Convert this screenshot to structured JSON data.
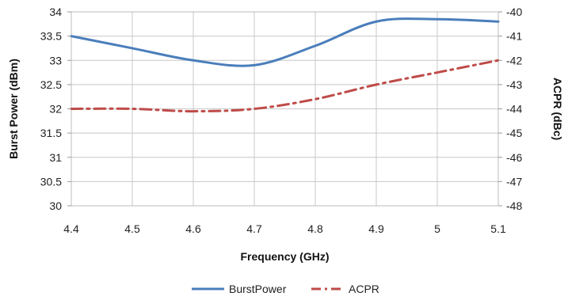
{
  "chart_data": {
    "type": "line",
    "xlabel": "Frequency (GHz)",
    "ylabel_left": "Burst Power (dBm)",
    "ylabel_right": "ACPR (dBc)",
    "xlim": [
      4.4,
      5.1
    ],
    "ylim_left": [
      30,
      34
    ],
    "ylim_right": [
      -48,
      -40
    ],
    "x_ticks": [
      "4.4",
      "4.5",
      "4.6",
      "4.7",
      "4.8",
      "4.9",
      "5",
      "5.1"
    ],
    "y_left_ticks": [
      "30",
      "30.5",
      "31",
      "31.5",
      "32",
      "32.5",
      "33",
      "33.5",
      "34"
    ],
    "y_right_ticks": [
      "-48",
      "-47",
      "-46",
      "-45",
      "-44",
      "-43",
      "-42",
      "-41",
      "-40"
    ],
    "grid": true,
    "legend_position": "bottom",
    "series": [
      {
        "name": "BurstPower",
        "axis": "left",
        "color": "#4a7ebb",
        "style": "solid",
        "x": [
          4.4,
          4.5,
          4.6,
          4.7,
          4.8,
          4.9,
          5.0,
          5.1
        ],
        "values": [
          33.5,
          33.25,
          33.0,
          32.9,
          33.3,
          33.8,
          33.85,
          33.8
        ]
      },
      {
        "name": "ACPR",
        "axis": "right",
        "color": "#be4b48",
        "style": "dashdot",
        "x": [
          4.4,
          4.5,
          4.6,
          4.7,
          4.8,
          4.9,
          5.0,
          5.1
        ],
        "values": [
          -44.0,
          -44.0,
          -44.1,
          -44.0,
          -43.6,
          -43.0,
          -42.5,
          -42.0
        ]
      }
    ]
  }
}
